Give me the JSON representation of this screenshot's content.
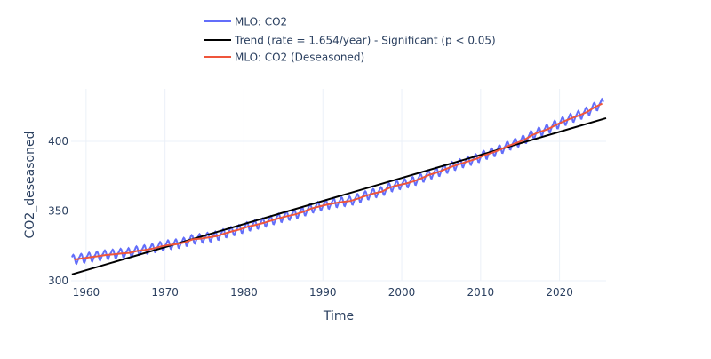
{
  "chart_data": {
    "type": "line",
    "title": "",
    "xlabel": "Time",
    "ylabel": "CO2_deseasoned",
    "xlim": [
      1958.1,
      2025.9
    ],
    "ylim": [
      300,
      437.6
    ],
    "xticks": [
      1960,
      1970,
      1980,
      1990,
      2000,
      2010,
      2020
    ],
    "yticks": [
      300,
      350,
      400
    ],
    "grid": true,
    "legend_placement": "top",
    "series": [
      {
        "name": "MLO: CO2",
        "color": "#636efa",
        "description_of_values": "monthly values = deseasoned annual values plus seasonal cycle",
        "seasonal_cycle_monthly": [
          0.3,
          1.0,
          1.7,
          2.9,
          3.4,
          2.8,
          1.2,
          -1.0,
          -2.9,
          -3.2,
          -2.0,
          -0.8
        ]
      },
      {
        "name": "Trend (rate = 1.654/year) - Significant (p < 0.05)",
        "color": "#000000",
        "rate": 1.654,
        "x": [
          1958.2,
          2025.9
        ],
        "y": [
          304.6,
          416.6
        ]
      },
      {
        "name": "MLO: CO2 (Deseasoned)",
        "color": "#EF553B",
        "x": [
          1958.5,
          1959.5,
          1960.5,
          1961.5,
          1962.5,
          1963.5,
          1964.5,
          1965.5,
          1966.5,
          1967.5,
          1968.5,
          1969.5,
          1970.5,
          1971.5,
          1972.5,
          1973.5,
          1974.5,
          1975.5,
          1976.5,
          1977.5,
          1978.5,
          1979.5,
          1980.5,
          1981.5,
          1982.5,
          1983.5,
          1984.5,
          1985.5,
          1986.5,
          1987.5,
          1988.5,
          1989.5,
          1990.5,
          1991.5,
          1992.5,
          1993.5,
          1994.5,
          1995.5,
          1996.5,
          1997.5,
          1998.5,
          1999.5,
          2000.5,
          2001.5,
          2002.5,
          2003.5,
          2004.5,
          2005.5,
          2006.5,
          2007.5,
          2008.5,
          2009.5,
          2010.5,
          2011.5,
          2012.5,
          2013.5,
          2014.5,
          2015.5,
          2016.5,
          2017.5,
          2018.5,
          2019.5,
          2020.5,
          2021.5,
          2022.5,
          2023.5,
          2024.5,
          2025.4
        ],
        "y": [
          315.2,
          316.0,
          316.9,
          317.6,
          318.5,
          319.0,
          319.6,
          320.0,
          321.4,
          322.2,
          323.1,
          324.6,
          325.7,
          326.3,
          327.5,
          329.7,
          330.2,
          331.1,
          332.0,
          333.8,
          335.4,
          336.8,
          338.8,
          340.1,
          341.5,
          343.2,
          344.9,
          346.4,
          347.6,
          349.3,
          351.7,
          353.2,
          354.5,
          355.7,
          356.5,
          357.2,
          359.0,
          361.0,
          362.7,
          363.9,
          366.8,
          368.5,
          369.7,
          371.3,
          373.5,
          376.0,
          377.7,
          380.0,
          382.1,
          384.0,
          385.8,
          387.6,
          390.1,
          391.9,
          394.1,
          396.7,
          398.8,
          401.0,
          404.4,
          406.8,
          408.7,
          411.7,
          414.2,
          416.5,
          418.6,
          421.1,
          424.6,
          427.0
        ]
      }
    ]
  }
}
